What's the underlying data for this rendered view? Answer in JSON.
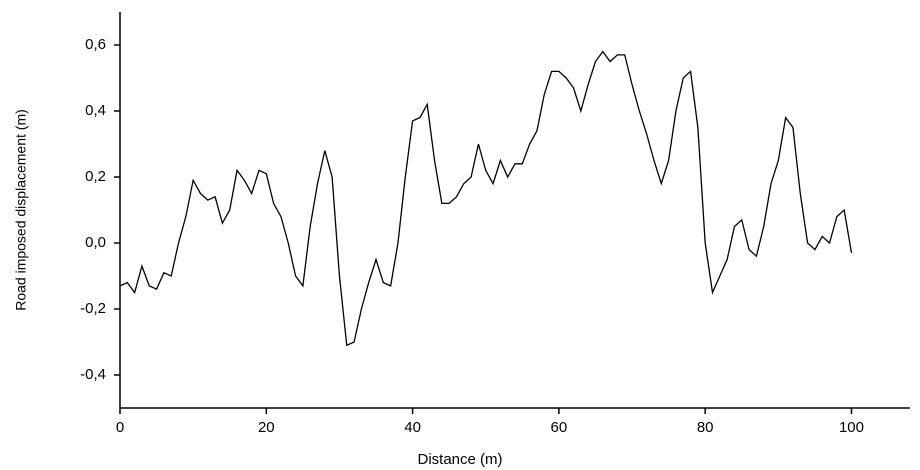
{
  "chart_data": {
    "type": "line",
    "x_label": "Distance (m)",
    "y_label": "Road imposed displacement (m)",
    "x": [
      0,
      1,
      2,
      3,
      4,
      5,
      6,
      7,
      8,
      9,
      10,
      11,
      12,
      13,
      14,
      15,
      16,
      17,
      18,
      19,
      20,
      21,
      22,
      23,
      24,
      25,
      26,
      27,
      28,
      29,
      30,
      31,
      32,
      33,
      34,
      35,
      36,
      37,
      38,
      39,
      40,
      41,
      42,
      43,
      44,
      45,
      46,
      47,
      48,
      49,
      50,
      51,
      52,
      53,
      54,
      55,
      56,
      57,
      58,
      59,
      60,
      61,
      62,
      63,
      64,
      65,
      66,
      67,
      68,
      69,
      70,
      71,
      72,
      73,
      74,
      75,
      76,
      77,
      78,
      79,
      80,
      81,
      82,
      83,
      84,
      85,
      86,
      87,
      88,
      89,
      90,
      91,
      92,
      93,
      94,
      95,
      96,
      97,
      98,
      99,
      100
    ],
    "series": [
      {
        "color": "#000000",
        "values": [
          -0.13,
          -0.12,
          -0.15,
          -0.07,
          -0.13,
          -0.14,
          -0.09,
          -0.1,
          0.0,
          0.08,
          0.19,
          0.15,
          0.13,
          0.14,
          0.06,
          0.1,
          0.22,
          0.19,
          0.15,
          0.22,
          0.21,
          0.12,
          0.08,
          0.0,
          -0.1,
          -0.13,
          0.05,
          0.18,
          0.28,
          0.2,
          -0.1,
          -0.31,
          -0.3,
          -0.2,
          -0.12,
          -0.05,
          -0.12,
          -0.13,
          0.0,
          0.2,
          0.37,
          0.38,
          0.42,
          0.25,
          0.12,
          0.12,
          0.14,
          0.18,
          0.2,
          0.3,
          0.22,
          0.18,
          0.25,
          0.2,
          0.24,
          0.24,
          0.3,
          0.34,
          0.45,
          0.52,
          0.52,
          0.5,
          0.47,
          0.4,
          0.48,
          0.55,
          0.58,
          0.55,
          0.57,
          0.57,
          0.48,
          0.4,
          0.33,
          0.25,
          0.18,
          0.25,
          0.4,
          0.5,
          0.52,
          0.35,
          0.0,
          -0.15,
          -0.1,
          -0.05,
          0.05,
          0.07,
          -0.02,
          -0.04,
          0.05,
          0.18,
          0.25,
          0.38,
          0.35,
          0.15,
          0.0,
          -0.02,
          0.02,
          0.0,
          0.08,
          0.1,
          -0.03
        ]
      }
    ],
    "xlim": [
      0,
      108
    ],
    "xticks": [
      0,
      20,
      40,
      60,
      80,
      100
    ],
    "ylim": [
      -0.5,
      0.7
    ],
    "yticks": [
      {
        "value": -0.4,
        "label": "-0,4"
      },
      {
        "value": -0.2,
        "label": "-0,2"
      },
      {
        "value": 0,
        "label": "0,0"
      },
      {
        "value": 0.2,
        "label": "0,2"
      },
      {
        "value": 0.4,
        "label": "0,4"
      },
      {
        "value": 0.6,
        "label": "0,6"
      }
    ],
    "grid": false
  }
}
